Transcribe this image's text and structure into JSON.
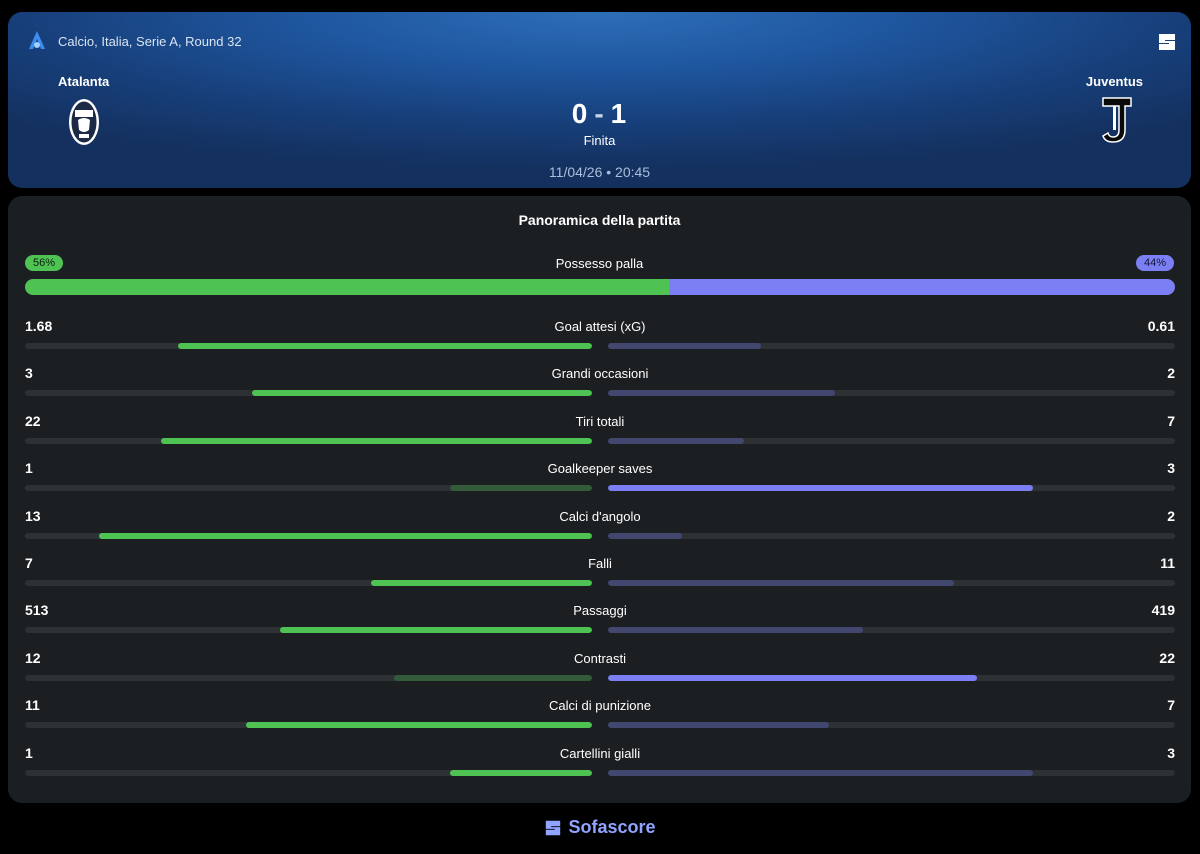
{
  "header": {
    "league": "Calcio, Italia, Serie A, Round 32",
    "home_team": "Atalanta",
    "away_team": "Juventus",
    "home_score": "0",
    "score_separator": "-",
    "away_score": "1",
    "status": "Finita",
    "datetime": "11/04/26 • 20:45",
    "icons": [
      "serie-a-logo-icon",
      "sofascore-mark-icon",
      "atalanta-crest-icon",
      "juventus-crest-icon"
    ]
  },
  "overview": {
    "title": "Panoramica della partita",
    "possession": {
      "label": "Possesso palla",
      "home": "56%",
      "away": "44%",
      "home_fraction": 0.56,
      "away_fraction": 0.44
    },
    "stats": [
      {
        "label": "Goal attesi (xG)",
        "home": "1.68",
        "away": "0.61",
        "home_fill": 0.73,
        "away_fill": 0.27,
        "leader": "home"
      },
      {
        "label": "Grandi occasioni",
        "home": "3",
        "away": "2",
        "home_fill": 0.6,
        "away_fill": 0.4,
        "leader": "home"
      },
      {
        "label": "Tiri totali",
        "home": "22",
        "away": "7",
        "home_fill": 0.76,
        "away_fill": 0.24,
        "leader": "home"
      },
      {
        "label": "Goalkeeper saves",
        "home": "1",
        "away": "3",
        "home_fill": 0.25,
        "away_fill": 0.75,
        "leader": "away"
      },
      {
        "label": "Calci d'angolo",
        "home": "13",
        "away": "2",
        "home_fill": 0.87,
        "away_fill": 0.13,
        "leader": "home"
      },
      {
        "label": "Falli",
        "home": "7",
        "away": "11",
        "home_fill": 0.39,
        "away_fill": 0.61,
        "leader": "home"
      },
      {
        "label": "Passaggi",
        "home": "513",
        "away": "419",
        "home_fill": 0.55,
        "away_fill": 0.45,
        "leader": "home"
      },
      {
        "label": "Contrasti",
        "home": "12",
        "away": "22",
        "home_fill": 0.35,
        "away_fill": 0.65,
        "leader": "away"
      },
      {
        "label": "Calci di punizione",
        "home": "11",
        "away": "7",
        "home_fill": 0.61,
        "away_fill": 0.39,
        "leader": "home"
      },
      {
        "label": "Cartellini gialli",
        "home": "1",
        "away": "3",
        "home_fill": 0.25,
        "away_fill": 0.75,
        "leader": "home"
      }
    ]
  },
  "footer": {
    "brand": "Sofascore"
  },
  "colors": {
    "home_strong": "#4ec253",
    "home_weak": "#335b3a",
    "away_strong": "#7b7ff3",
    "away_weak": "#424770"
  }
}
